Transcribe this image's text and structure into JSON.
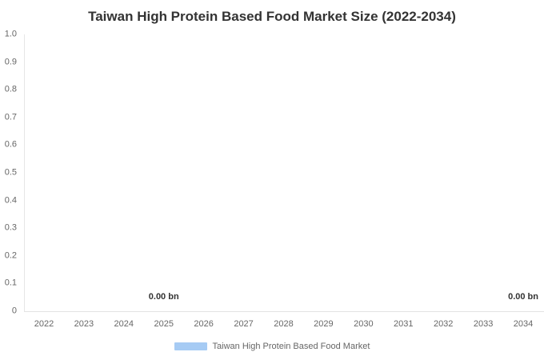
{
  "chart_data": {
    "type": "bar",
    "title": "Taiwan High Protein Based Food Market Size (2022-2034)",
    "categories": [
      "2022",
      "2023",
      "2024",
      "2025",
      "2026",
      "2027",
      "2028",
      "2029",
      "2030",
      "2031",
      "2032",
      "2033",
      "2034"
    ],
    "series": [
      {
        "name": "Taiwan High Protein Based Food Market",
        "values": [
          0,
          0,
          0,
          0,
          0,
          0,
          0,
          0,
          0,
          0,
          0,
          0,
          0
        ],
        "unit": "bn",
        "color": "#a6cbf4"
      }
    ],
    "xlabel": "",
    "ylabel": "",
    "ylim": [
      0,
      1.0
    ],
    "y_ticks": [
      "0",
      "0.1",
      "0.2",
      "0.3",
      "0.4",
      "0.5",
      "0.6",
      "0.7",
      "0.8",
      "0.9",
      "1.0"
    ],
    "grid": false,
    "legend_position": "bottom",
    "data_labels": [
      {
        "text": "0.00 bn",
        "category": "2025",
        "category_index": 3
      },
      {
        "text": "0.00 bn",
        "category": "2034",
        "category_index": 12
      }
    ],
    "legend": {
      "label": "Taiwan High Protein Based Food Market",
      "swatch_color": "#a6cbf4"
    },
    "colors": {
      "title_text": "#333333",
      "axis_label_text": "#666666",
      "data_label_text": "#333333",
      "axis_line": "#e6e6e6",
      "background": "#ffffff"
    }
  }
}
